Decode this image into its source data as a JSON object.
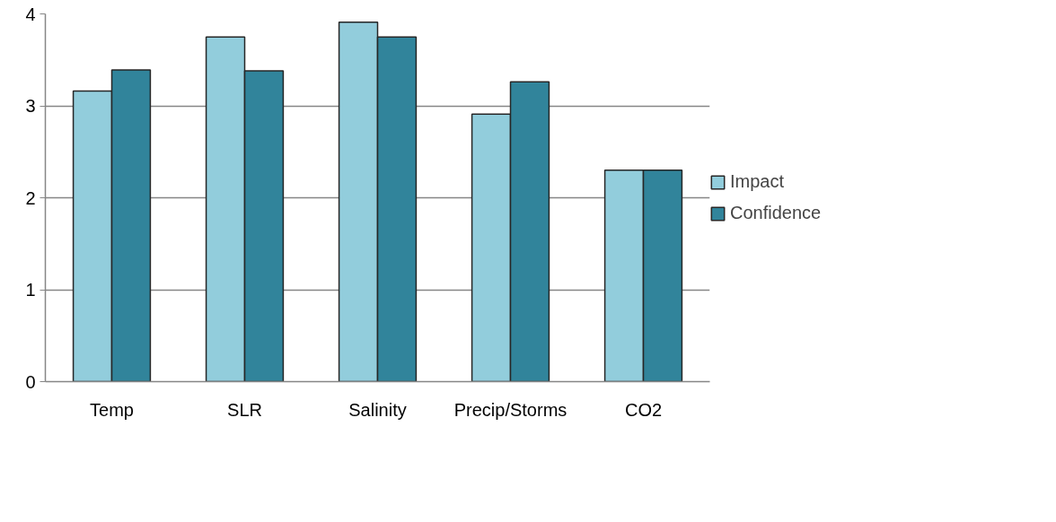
{
  "chart_data": {
    "type": "bar",
    "categories": [
      "Temp",
      "SLR",
      "Salinity",
      "Precip/Storms",
      "CO2"
    ],
    "series": [
      {
        "name": "Impact",
        "color": "#92cddc",
        "values": [
          3.16,
          3.75,
          3.91,
          2.91,
          2.3
        ]
      },
      {
        "name": "Confidence",
        "color": "#31849b",
        "values": [
          3.39,
          3.38,
          3.75,
          3.26,
          2.3
        ]
      }
    ],
    "ylim": [
      0,
      4
    ],
    "yticks": [
      0,
      1,
      2,
      3,
      4
    ],
    "grid": "y",
    "legend": "right"
  }
}
